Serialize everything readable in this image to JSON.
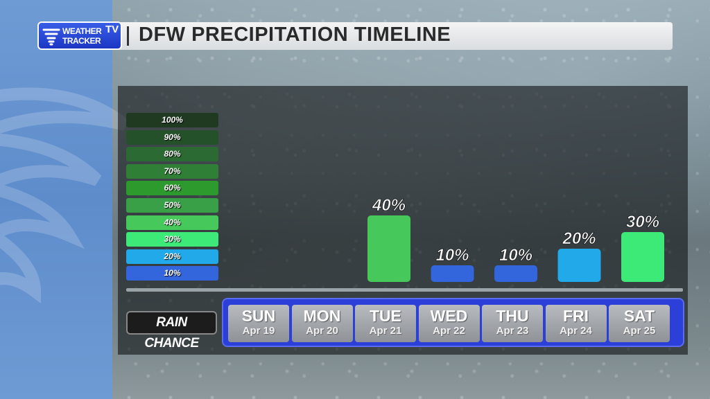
{
  "header": {
    "logo_line1": "WEATHER",
    "logo_line2": "TRACKER",
    "logo_tv": "TV",
    "title": "DFW PRECIPITATION TIMELINE"
  },
  "legend": [
    {
      "label": "100%",
      "color": "#1f3a20"
    },
    {
      "label": "90%",
      "color": "#25512a"
    },
    {
      "label": "80%",
      "color": "#2c6a33"
    },
    {
      "label": "70%",
      "color": "#2f7f36"
    },
    {
      "label": "60%",
      "color": "#2c9a2c"
    },
    {
      "label": "50%",
      "color": "#3aa047"
    },
    {
      "label": "40%",
      "color": "#47c85a"
    },
    {
      "label": "30%",
      "color": "#3dea78"
    },
    {
      "label": "20%",
      "color": "#22a9ea"
    },
    {
      "label": "10%",
      "color": "#3366dd"
    }
  ],
  "row_label": "RAIN CHANCE",
  "chart_data": {
    "type": "bar",
    "categories": [
      "SUN",
      "MON",
      "TUE",
      "WED",
      "THU",
      "FRI",
      "SAT"
    ],
    "dates": [
      "Apr 19",
      "Apr 20",
      "Apr 21",
      "Apr 22",
      "Apr 23",
      "Apr 24",
      "Apr 25"
    ],
    "values": [
      0,
      0,
      40,
      10,
      10,
      20,
      30
    ],
    "value_labels": [
      "",
      "",
      "40%",
      "10%",
      "10%",
      "20%",
      "30%"
    ],
    "bar_colors": [
      "#3366dd",
      "#3366dd",
      "#47c85a",
      "#3366dd",
      "#3366dd",
      "#22a9ea",
      "#3dea78"
    ],
    "title": "DFW PRECIPITATION TIMELINE",
    "ylim": [
      0,
      100
    ]
  }
}
